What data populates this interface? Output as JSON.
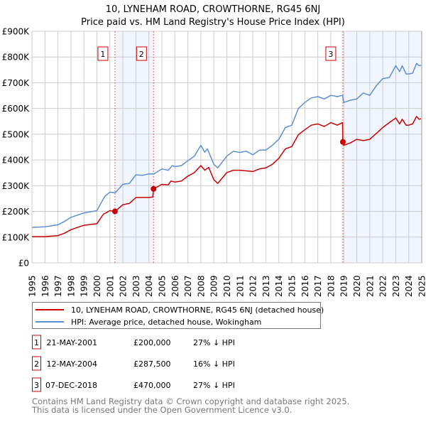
{
  "chart_data": {
    "type": "line",
    "title": "10, LYNEHAM ROAD, CROWTHORNE, RG45 6NJ",
    "subtitle": "Price paid vs. HM Land Registry's House Price Index (HPI)",
    "xlabel": "",
    "ylabel": "",
    "xlim": [
      1995,
      2025
    ],
    "ylim": [
      0,
      900000
    ],
    "grid": true,
    "legend_placement": "below",
    "x_ticks": [
      "1995",
      "1996",
      "1997",
      "1998",
      "1999",
      "2000",
      "2001",
      "2002",
      "2003",
      "2004",
      "2005",
      "2006",
      "2007",
      "2008",
      "2009",
      "2010",
      "2011",
      "2012",
      "2013",
      "2014",
      "2015",
      "2016",
      "2017",
      "2018",
      "2019",
      "2020",
      "2021",
      "2022",
      "2023",
      "2024",
      "2025"
    ],
    "y_ticks": [
      {
        "value": 0,
        "label": "£0"
      },
      {
        "value": 100000,
        "label": "£100K"
      },
      {
        "value": 200000,
        "label": "£200K"
      },
      {
        "value": 300000,
        "label": "£300K"
      },
      {
        "value": 400000,
        "label": "£400K"
      },
      {
        "value": 500000,
        "label": "£500K"
      },
      {
        "value": 600000,
        "label": "£600K"
      },
      {
        "value": 700000,
        "label": "£700K"
      },
      {
        "value": 800000,
        "label": "£800K"
      },
      {
        "value": 900000,
        "label": "£900K"
      }
    ],
    "series": [
      {
        "name": "10, LYNEHAM ROAD, CROWTHORNE, RG45 6NJ (detached house)",
        "color": "#cc0000",
        "x": [
          1995,
          1996,
          1997,
          1997.5,
          1998,
          1999,
          2000,
          2000.5,
          2001,
          2001.39,
          2002,
          2002.5,
          2003,
          2004,
          2004.3,
          2004.36,
          2005,
          2005.5,
          2005.7,
          2006,
          2006.5,
          2007,
          2007.5,
          2008,
          2008.3,
          2008.6,
          2009,
          2009.3,
          2010,
          2010.5,
          2011,
          2012,
          2012.5,
          2013,
          2013.5,
          2014,
          2014.5,
          2015,
          2015.5,
          2016,
          2016.5,
          2017,
          2017.5,
          2018,
          2018.5,
          2018.9,
          2018.93,
          2019,
          2019.5,
          2020,
          2020.5,
          2021,
          2021.5,
          2022,
          2022.5,
          2023,
          2023.3,
          2023.5,
          2023.8,
          2024,
          2024.3,
          2024.6,
          2024.8,
          2024.95
        ],
        "y": [
          102000,
          102000,
          106000,
          115000,
          129000,
          146000,
          152000,
          189000,
          203000,
          200000,
          226000,
          231000,
          254000,
          254000,
          256000,
          287500,
          305000,
          303000,
          318000,
          314000,
          318000,
          337000,
          351000,
          378000,
          360000,
          371000,
          323000,
          309000,
          351000,
          360000,
          360000,
          355000,
          365000,
          369000,
          383000,
          406000,
          443000,
          452000,
          498000,
          517000,
          535000,
          540000,
          530000,
          545000,
          535000,
          545000,
          470000,
          457000,
          466000,
          480000,
          475000,
          480000,
          503000,
          526000,
          545000,
          563000,
          540000,
          558000,
          535000,
          535000,
          540000,
          569000,
          558000,
          560000
        ]
      },
      {
        "name": "HPI: Average price, detached house, Wokingham",
        "color": "#5b8fd6",
        "x": [
          1995,
          1996,
          1997,
          1997.5,
          1998,
          1999,
          2000,
          2000.3,
          2000.6,
          2001,
          2001.4,
          2002,
          2002.5,
          2003,
          2003.5,
          2004,
          2004.4,
          2005,
          2005.5,
          2005.8,
          2006,
          2006.5,
          2007,
          2007.5,
          2008,
          2008.3,
          2008.5,
          2009,
          2009.3,
          2010,
          2010.5,
          2011,
          2011.5,
          2012,
          2012.5,
          2013,
          2013.5,
          2014,
          2014.5,
          2015,
          2015.5,
          2016,
          2016.5,
          2017,
          2017.5,
          2018,
          2018.5,
          2018.9,
          2019,
          2019.5,
          2020,
          2020.5,
          2021,
          2021.5,
          2022,
          2022.5,
          2023,
          2023.3,
          2023.5,
          2023.8,
          2024,
          2024.3,
          2024.6,
          2024.8,
          2024.95
        ],
        "y": [
          138000,
          140000,
          148000,
          161000,
          177000,
          194000,
          203000,
          231000,
          258000,
          275000,
          272000,
          305000,
          309000,
          342000,
          340000,
          346000,
          346000,
          365000,
          360000,
          378000,
          374000,
          378000,
          397000,
          415000,
          457000,
          430000,
          443000,
          383000,
          369000,
          415000,
          434000,
          429000,
          434000,
          420000,
          438000,
          438000,
          457000,
          480000,
          526000,
          535000,
          600000,
          623000,
          641000,
          646000,
          637000,
          651000,
          646000,
          651000,
          623000,
          632000,
          637000,
          660000,
          651000,
          688000,
          716000,
          720000,
          766000,
          743000,
          766000,
          734000,
          734000,
          737000,
          775000,
          766000,
          768000
        ]
      }
    ],
    "sales": [
      {
        "marker": "1",
        "x": 2001.39,
        "date": "21-MAY-2001",
        "price": 200000,
        "price_label": "£200,000",
        "hpi_diff": "27% ↓ HPI"
      },
      {
        "marker": "2",
        "x": 2004.36,
        "date": "12-MAY-2004",
        "price": 287500,
        "price_label": "£287,500",
        "hpi_diff": "16% ↓ HPI"
      },
      {
        "marker": "3",
        "x": 2018.93,
        "date": "07-DEC-2018",
        "price": 470000,
        "price_label": "£470,000",
        "hpi_diff": "27% ↓ HPI"
      }
    ],
    "shaded_ranges": [
      [
        2001.39,
        2004.36
      ],
      [
        2018.93,
        2025
      ]
    ]
  },
  "footer": {
    "line1": "Contains HM Land Registry data © Crown copyright and database right 2025.",
    "line2": "This data is licensed under the Open Government Licence v3.0."
  }
}
